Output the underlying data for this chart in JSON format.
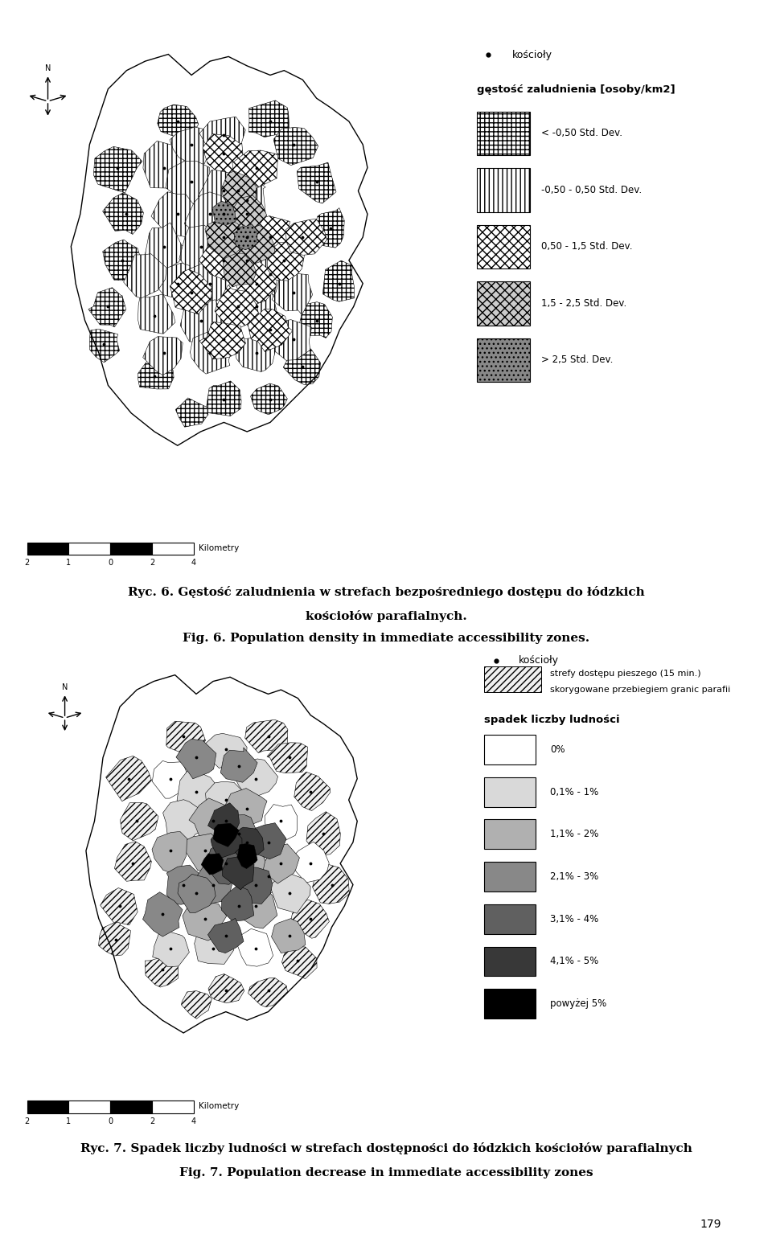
{
  "fig_width": 9.6,
  "fig_height": 15.5,
  "bg_color": "#ffffff",
  "map1_caption_line1": "Ryc. 6. Gęstość zaludnienia w strefach bezpośredniego dostępu do łódzkich",
  "map1_caption_line2": "kościołów parafialnych.",
  "map1_caption_line3": "Fig. 6. Population density in immediate accessibility zones.",
  "map2_caption_line1": "Ryc. 7. Spadek liczby ludności w strefach dostępności do łódzkich kościołów parafialnych",
  "map2_caption_line2": "Fig. 7. Population decrease in immediate accessibility zones",
  "legend1_dot": "kościoły",
  "legend1_density_title": "gęstość zaludnienia [osoby/km2]",
  "legend1_items": [
    {
      "label": "< -0,50 Std. Dev.",
      "hatch": "+++",
      "fc": "#ffffff"
    },
    {
      "label": "-0,50 - 0,50 Std. Dev.",
      "hatch": "|||",
      "fc": "#ffffff"
    },
    {
      "label": "0,50 - 1,5 Std. Dev.",
      "hatch": "xxx",
      "fc": "#ffffff"
    },
    {
      "label": "1,5 - 2,5 Std. Dev.",
      "hatch": "XXX",
      "fc": "#cccccc"
    },
    {
      "label": "> 2,5 Std. Dev.",
      "hatch": "...",
      "fc": "#888888"
    }
  ],
  "legend2_dot": "kościoły",
  "legend2_hatch_line1": "strefy dostępu pieszego (15 min.)",
  "legend2_hatch_line2": "skorygowane przebiegiem granic parafii",
  "legend2_pop_title": "spadek liczby ludności",
  "legend2_items": [
    {
      "label": "0%",
      "color": "#ffffff"
    },
    {
      "label": "0,1% - 1%",
      "color": "#d9d9d9"
    },
    {
      "label": "1,1% - 2%",
      "color": "#b0b0b0"
    },
    {
      "label": "2,1% - 3%",
      "color": "#888888"
    },
    {
      "label": "3,1% - 4%",
      "color": "#606060"
    },
    {
      "label": "4,1% - 5%",
      "color": "#383838"
    },
    {
      "label": "powyżej 5%",
      "color": "#000000"
    }
  ],
  "scalebar_label": "Kilometry",
  "scalebar_ticks": [
    "2",
    "1",
    "0",
    "2",
    "4"
  ],
  "page_number": "179"
}
